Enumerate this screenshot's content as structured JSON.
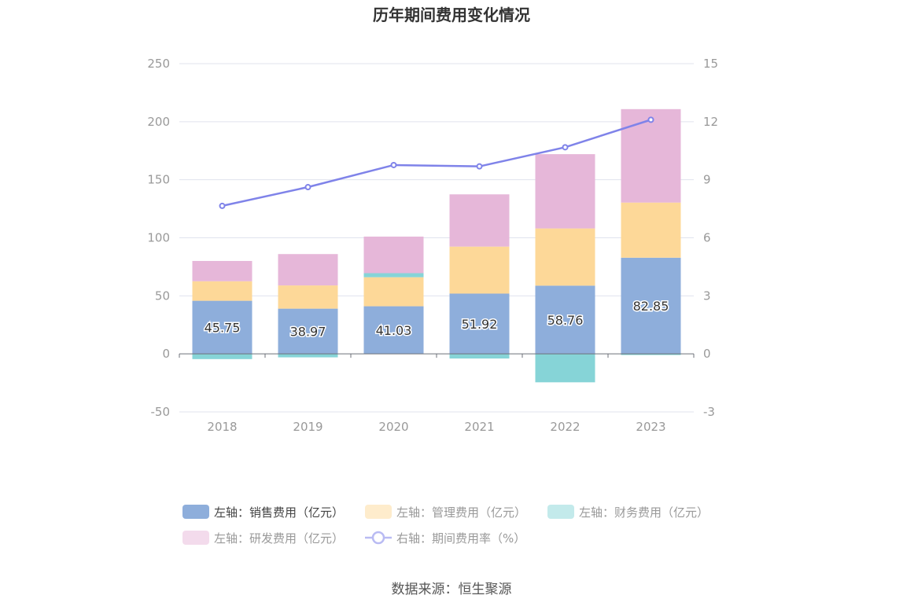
{
  "chart_data": {
    "type": "bar",
    "title": "历年期间费用变化情况",
    "categories": [
      "2018",
      "2019",
      "2020",
      "2021",
      "2022",
      "2023"
    ],
    "stacked": true,
    "y_left": {
      "ylim": [
        -50,
        250
      ],
      "ticks": [
        "250",
        "200",
        "150",
        "100",
        "50",
        "0",
        "-50"
      ]
    },
    "y_right": {
      "ylim": [
        -3,
        15
      ],
      "ticks": [
        "15",
        "12",
        "9",
        "6",
        "3",
        "0",
        "-3"
      ]
    },
    "grid": true,
    "legend_position": "bottom",
    "series": [
      {
        "name": "左轴：销售费用（亿元）",
        "axis": "left",
        "type": "bar",
        "color": "#8eaedb",
        "values": [
          45.75,
          38.97,
          41.03,
          51.92,
          58.76,
          82.85
        ],
        "data_labels": true
      },
      {
        "name": "左轴：管理费用（亿元）",
        "axis": "left",
        "type": "bar",
        "color": "#fdd898",
        "values": [
          16.8,
          20.0,
          25.0,
          40.5,
          49.3,
          47.5
        ]
      },
      {
        "name": "左轴：财务费用（亿元）",
        "axis": "left",
        "type": "bar",
        "color": "#86d4d7",
        "values": [
          -4.5,
          -3.0,
          3.5,
          -4.0,
          -24.5,
          -1.0
        ]
      },
      {
        "name": "左轴：研发费用（亿元）",
        "axis": "left",
        "type": "bar",
        "color": "#e6b7d9",
        "values": [
          17.5,
          27.0,
          31.5,
          45.0,
          64.0,
          80.5
        ]
      },
      {
        "name": "右轴：期间费用率（%）",
        "axis": "right",
        "type": "line",
        "color": "#7f83e9",
        "values": [
          7.65,
          8.62,
          9.76,
          9.69,
          10.68,
          12.1
        ]
      }
    ]
  },
  "source": "数据来源：恒生聚源"
}
